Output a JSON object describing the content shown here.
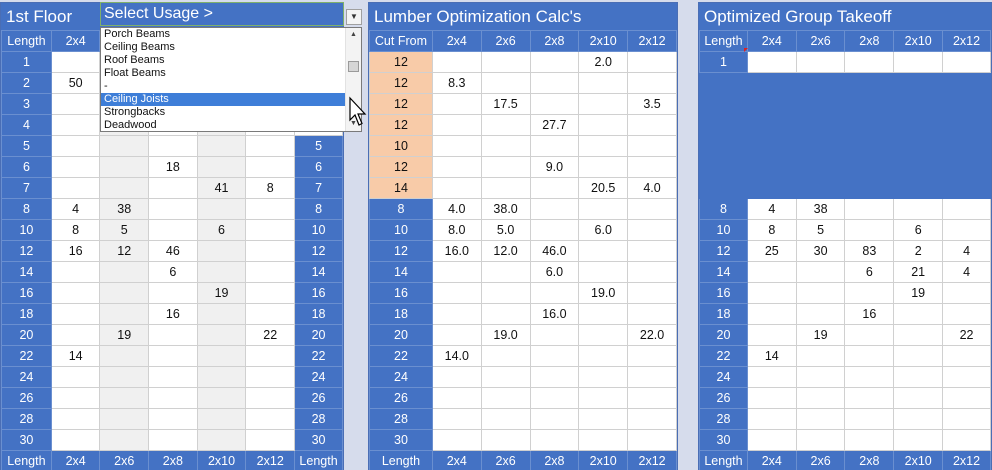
{
  "floor": {
    "title": "1st Floor",
    "head": [
      "Length",
      "2x4",
      "2x6",
      "2x8",
      "2x10",
      "2x12",
      ""
    ],
    "foot": [
      "Length",
      "2x4",
      "2x6",
      "2x8",
      "2x10",
      "2x12",
      "Length"
    ],
    "dropdown_text": "Select Usage >",
    "usage_options": [
      "Porch Beams",
      "Ceiling Beams",
      "Roof Beams",
      "Float Beams",
      "-",
      "Ceiling Joists",
      "Strongbacks",
      "Deadwood"
    ],
    "selected_option": "Ceiling Joists",
    "rows": [
      [
        "1",
        "",
        "",
        "",
        "",
        "",
        ""
      ],
      [
        "2",
        "50",
        "",
        "",
        "",
        "",
        ""
      ],
      [
        "3",
        "",
        "",
        "",
        "",
        "",
        ""
      ],
      [
        "4",
        "",
        "",
        "",
        "",
        "",
        ""
      ],
      [
        "5",
        "",
        "",
        "",
        "",
        "",
        "5"
      ],
      [
        "6",
        "",
        "",
        "18",
        "",
        "",
        "6"
      ],
      [
        "7",
        "",
        "",
        "",
        "41",
        "8",
        "7"
      ],
      [
        "8",
        "4",
        "38",
        "",
        "",
        "",
        "8"
      ],
      [
        "10",
        "8",
        "5",
        "",
        "6",
        "",
        "10"
      ],
      [
        "12",
        "16",
        "12",
        "46",
        "",
        "",
        "12"
      ],
      [
        "14",
        "",
        "",
        "6",
        "",
        "",
        "14"
      ],
      [
        "16",
        "",
        "",
        "",
        "19",
        "",
        "16"
      ],
      [
        "18",
        "",
        "",
        "16",
        "",
        "",
        "18"
      ],
      [
        "20",
        "",
        "19",
        "",
        "",
        "22",
        "20"
      ],
      [
        "22",
        "14",
        "",
        "",
        "",
        "",
        "22"
      ],
      [
        "24",
        "",
        "",
        "",
        "",
        "",
        "24"
      ],
      [
        "26",
        "",
        "",
        "",
        "",
        "",
        "26"
      ],
      [
        "28",
        "",
        "",
        "",
        "",
        "",
        "28"
      ],
      [
        "30",
        "",
        "",
        "",
        "",
        "",
        "30"
      ]
    ]
  },
  "calc": {
    "title": "Lumber Optimization Calc's",
    "head": [
      "Cut From",
      "2x4",
      "2x6",
      "2x8",
      "2x10",
      "2x12"
    ],
    "foot": [
      "Length",
      "2x4",
      "2x6",
      "2x8",
      "2x10",
      "2x12"
    ],
    "rows": [
      [
        "12",
        "",
        "",
        "",
        "2.0",
        ""
      ],
      [
        "12",
        "8.3",
        "",
        "",
        "",
        ""
      ],
      [
        "12",
        "",
        "17.5",
        "",
        "",
        "3.5"
      ],
      [
        "12",
        "",
        "",
        "27.7",
        "",
        ""
      ],
      [
        "10",
        "",
        "",
        "",
        "",
        ""
      ],
      [
        "12",
        "",
        "",
        "9.0",
        "",
        ""
      ],
      [
        "14",
        "",
        "",
        "",
        "20.5",
        "4.0"
      ],
      [
        "8",
        "4.0",
        "38.0",
        "",
        "",
        ""
      ],
      [
        "10",
        "8.0",
        "5.0",
        "",
        "6.0",
        ""
      ],
      [
        "12",
        "16.0",
        "12.0",
        "46.0",
        "",
        ""
      ],
      [
        "14",
        "",
        "",
        "6.0",
        "",
        ""
      ],
      [
        "16",
        "",
        "",
        "",
        "19.0",
        ""
      ],
      [
        "18",
        "",
        "",
        "16.0",
        "",
        ""
      ],
      [
        "20",
        "",
        "19.0",
        "",
        "",
        "22.0"
      ],
      [
        "22",
        "14.0",
        "",
        "",
        "",
        ""
      ],
      [
        "24",
        "",
        "",
        "",
        "",
        ""
      ],
      [
        "26",
        "",
        "",
        "",
        "",
        ""
      ],
      [
        "28",
        "",
        "",
        "",
        "",
        ""
      ],
      [
        "30",
        "",
        "",
        "",
        "",
        ""
      ]
    ]
  },
  "takeoff": {
    "title": "Optimized Group Takeoff",
    "head": [
      "Length",
      "2x4",
      "2x6",
      "2x8",
      "2x10",
      "2x12"
    ],
    "foot": [
      "Length",
      "2x4",
      "2x6",
      "2x8",
      "2x10",
      "2x12"
    ],
    "first_row": [
      "1",
      "",
      "",
      "",
      "",
      ""
    ],
    "rows": [
      [
        "8",
        "4",
        "38",
        "",
        "",
        ""
      ],
      [
        "10",
        "8",
        "5",
        "",
        "6",
        ""
      ],
      [
        "12",
        "25",
        "30",
        "83",
        "2",
        "4"
      ],
      [
        "14",
        "",
        "",
        "6",
        "21",
        "4"
      ],
      [
        "16",
        "",
        "",
        "",
        "19",
        ""
      ],
      [
        "18",
        "",
        "",
        "16",
        "",
        ""
      ],
      [
        "20",
        "",
        "19",
        "",
        "",
        "22"
      ],
      [
        "22",
        "14",
        "",
        "",
        "",
        ""
      ],
      [
        "24",
        "",
        "",
        "",
        "",
        ""
      ],
      [
        "26",
        "",
        "",
        "",
        "",
        ""
      ],
      [
        "28",
        "",
        "",
        "",
        "",
        ""
      ],
      [
        "30",
        "",
        "",
        "",
        "",
        ""
      ]
    ]
  },
  "colors": {
    "header_blue": "#4472c4",
    "cut_orange": "#f8cba8",
    "shade_gray": "#f0f0f0",
    "selected_blue": "#3e7ed8"
  },
  "icons": [
    "dropdown-arrow-icon",
    "mouse-pointer-icon",
    "scroll-up-icon",
    "scroll-down-icon"
  ]
}
